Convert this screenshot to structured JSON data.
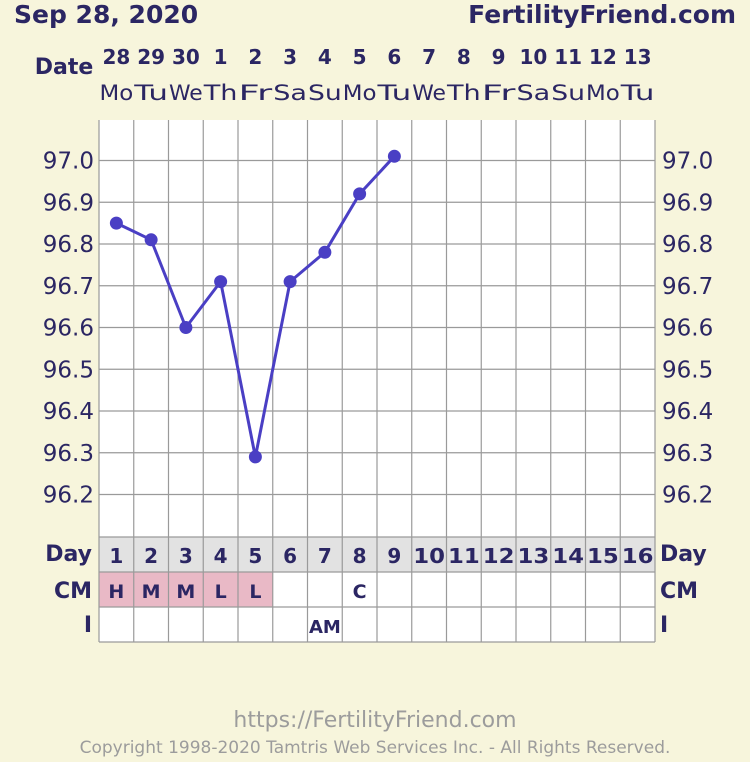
{
  "header": {
    "date": "Sep 28, 2020",
    "site": "FertilityFriend.com"
  },
  "labels": {
    "date_row": "Date",
    "day_row": "Day",
    "cm_row": "CM",
    "i_row": "I"
  },
  "footer": {
    "url": "https://FertilityFriend.com",
    "copyright": "Copyright 1998-2020 Tamtris Web Services Inc. - All Rights Reserved."
  },
  "colors": {
    "line": "#4A3FC4",
    "text": "#2B2663",
    "grid": "#9A9A9A",
    "plot_bg": "#FFFFFF",
    "day_bg": "#E2E2E2",
    "menses_bg": "#E9B9C6",
    "page_bg": "#F7F5DC"
  },
  "chart_data": {
    "type": "line",
    "dates": [
      "28",
      "29",
      "30",
      "1",
      "2",
      "3",
      "4",
      "5",
      "6",
      "7",
      "8",
      "9",
      "10",
      "11",
      "12",
      "13"
    ],
    "weekdays": [
      "Mo",
      "Tu",
      "We",
      "Th",
      "Fr",
      "Sa",
      "Su",
      "Mo",
      "Tu",
      "We",
      "Th",
      "Fr",
      "Sa",
      "Su",
      "Mo",
      "Tu"
    ],
    "cycle_days": [
      "1",
      "2",
      "3",
      "4",
      "5",
      "6",
      "7",
      "8",
      "9",
      "10",
      "11",
      "12",
      "13",
      "14",
      "15",
      "16"
    ],
    "temperatures": [
      96.85,
      96.81,
      96.6,
      96.71,
      96.29,
      96.71,
      96.78,
      96.92,
      97.01
    ],
    "y_ticks": [
      "97.0",
      "96.9",
      "96.8",
      "96.7",
      "96.6",
      "96.5",
      "96.4",
      "96.3",
      "96.2"
    ],
    "ylim": [
      96.1,
      97.1
    ],
    "cm": [
      "H",
      "M",
      "M",
      "L",
      "L",
      "",
      "",
      "C",
      "",
      "",
      "",
      "",
      "",
      "",
      "",
      ""
    ],
    "menses_days": [
      1,
      2,
      3,
      4,
      5
    ],
    "intercourse": [
      "",
      "",
      "",
      "",
      "",
      "",
      "AM",
      "",
      "",
      "",
      "",
      "",
      "",
      "",
      "",
      ""
    ]
  }
}
